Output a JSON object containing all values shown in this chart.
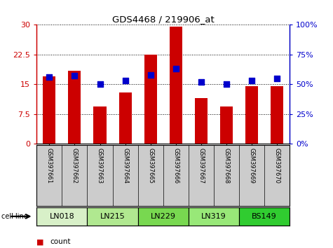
{
  "title": "GDS4468 / 219906_at",
  "samples": [
    "GSM397661",
    "GSM397662",
    "GSM397663",
    "GSM397664",
    "GSM397665",
    "GSM397666",
    "GSM397667",
    "GSM397668",
    "GSM397669",
    "GSM397670"
  ],
  "counts": [
    17.0,
    18.5,
    9.5,
    13.0,
    22.5,
    29.5,
    11.5,
    9.5,
    14.5,
    14.5
  ],
  "percentiles": [
    56,
    57,
    50,
    53,
    58,
    63,
    52,
    50,
    53,
    55
  ],
  "cell_lines": [
    {
      "label": "LN018",
      "start": 0,
      "end": 2,
      "color": "#d8f0c8"
    },
    {
      "label": "LN215",
      "start": 2,
      "end": 4,
      "color": "#b0e890"
    },
    {
      "label": "LN229",
      "start": 4,
      "end": 6,
      "color": "#78d850"
    },
    {
      "label": "LN319",
      "start": 6,
      "end": 8,
      "color": "#98e878"
    },
    {
      "label": "BS149",
      "start": 8,
      "end": 10,
      "color": "#30cc30"
    }
  ],
  "ylim_left": [
    0,
    30
  ],
  "ylim_right": [
    0,
    100
  ],
  "yticks_left": [
    0,
    7.5,
    15,
    22.5,
    30
  ],
  "yticks_right": [
    0,
    25,
    50,
    75,
    100
  ],
  "ytick_labels_left": [
    "0",
    "7.5",
    "15",
    "22.5",
    "30"
  ],
  "ytick_labels_right": [
    "0%",
    "25%",
    "50%",
    "75%",
    "100%"
  ],
  "bar_color": "#cc0000",
  "dot_color": "#0000cc",
  "bar_width": 0.5,
  "dot_size": 40,
  "tick_area_bg": "#cccccc"
}
